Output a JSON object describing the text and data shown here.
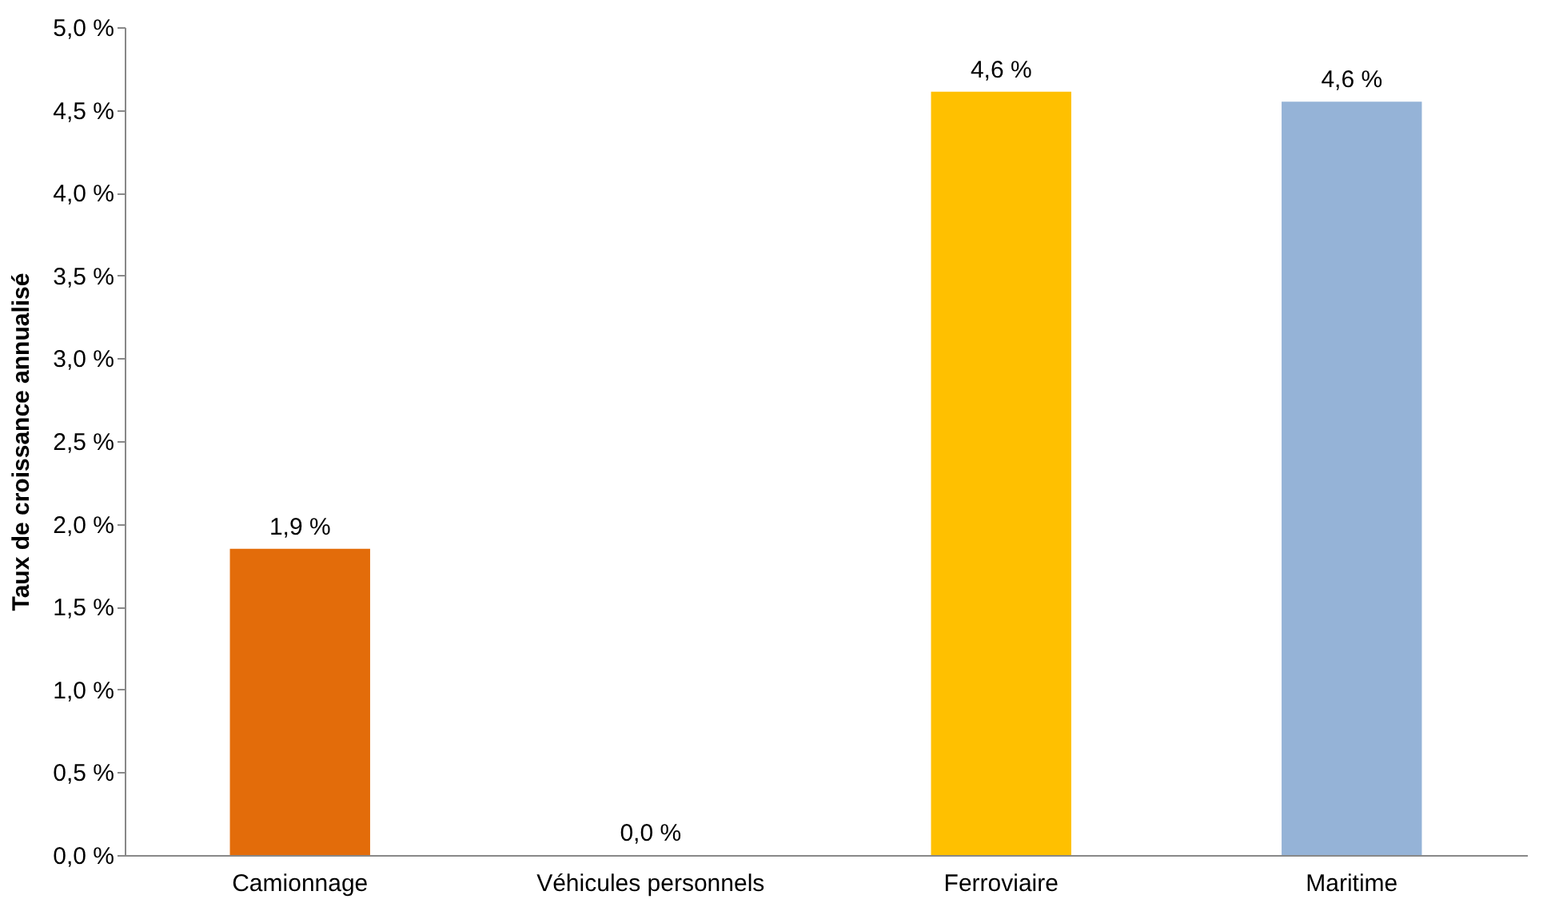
{
  "chart_data": {
    "type": "bar",
    "ylabel": "Taux de croissance annualisé",
    "categories": [
      "Camionnage",
      "Véhicules personnels",
      "Ferroviaire",
      "Maritime"
    ],
    "values": [
      1.85,
      0.0,
      4.61,
      4.55
    ],
    "colors": [
      "#e36c0a",
      "#4f81bd",
      "#ffc000",
      "#95b3d7"
    ],
    "value_labels": [
      "1,9 %",
      "0,0 %",
      "4,6 %",
      "4,6 %"
    ],
    "ylim": [
      0,
      5
    ],
    "yticks": [
      {
        "value": 0,
        "label": "0,0 %"
      },
      {
        "value": 0.5,
        "label": "0,5 %"
      },
      {
        "value": 1,
        "label": "1,0 %"
      },
      {
        "value": 1.5,
        "label": "1,5 %"
      },
      {
        "value": 2,
        "label": "2,0 %"
      },
      {
        "value": 2.5,
        "label": "2,5 %"
      },
      {
        "value": 3,
        "label": "3,0 %"
      },
      {
        "value": 3.5,
        "label": "3,5 %"
      },
      {
        "value": 4,
        "label": "4,0 %"
      },
      {
        "value": 4.5,
        "label": "4,5 %"
      },
      {
        "value": 5,
        "label": "5,0 %"
      }
    ],
    "grid": false,
    "legend": false
  }
}
